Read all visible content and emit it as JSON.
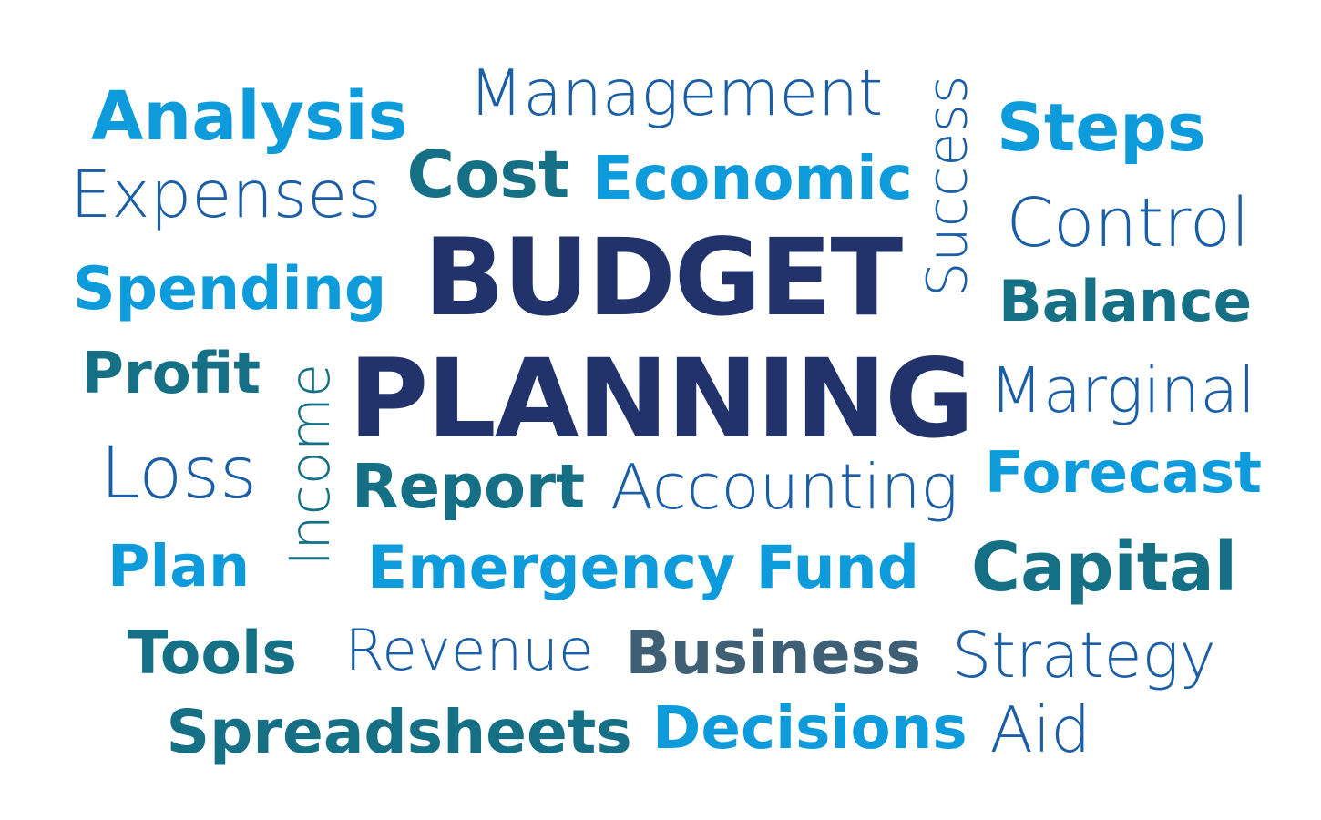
{
  "colors": {
    "navy": "#22336b",
    "royal": "#1a5ea6",
    "sky": "#0e9bdb",
    "teal": "#157086",
    "steel": "#3f5f75",
    "bg": "#ffffff"
  },
  "cloud": {
    "headline": {
      "line1": "BUDGET",
      "line2": "PLANNING"
    },
    "words": [
      {
        "key": "analysis",
        "text": "Analysis"
      },
      {
        "key": "management",
        "text": "Management"
      },
      {
        "key": "success",
        "text": "Success"
      },
      {
        "key": "steps",
        "text": "Steps"
      },
      {
        "key": "expenses",
        "text": "Expenses"
      },
      {
        "key": "cost",
        "text": "Cost"
      },
      {
        "key": "economic",
        "text": "Economic"
      },
      {
        "key": "control",
        "text": "Control"
      },
      {
        "key": "spending",
        "text": "Spending"
      },
      {
        "key": "balance",
        "text": "Balance"
      },
      {
        "key": "profit",
        "text": "Profit"
      },
      {
        "key": "income",
        "text": "Income"
      },
      {
        "key": "marginal",
        "text": "Marginal"
      },
      {
        "key": "loss",
        "text": "Loss"
      },
      {
        "key": "report",
        "text": "Report"
      },
      {
        "key": "accounting",
        "text": "Accounting"
      },
      {
        "key": "forecast",
        "text": "Forecast"
      },
      {
        "key": "plan",
        "text": "Plan"
      },
      {
        "key": "emergency-fund",
        "text": "Emergency Fund"
      },
      {
        "key": "capital",
        "text": "Capital"
      },
      {
        "key": "tools",
        "text": "Tools"
      },
      {
        "key": "revenue",
        "text": "Revenue"
      },
      {
        "key": "business",
        "text": "Business"
      },
      {
        "key": "strategy",
        "text": "Strategy"
      },
      {
        "key": "spreadsheets",
        "text": "Spreadsheets"
      },
      {
        "key": "decisions",
        "text": "Decisions"
      },
      {
        "key": "aid",
        "text": "Aid"
      }
    ]
  }
}
